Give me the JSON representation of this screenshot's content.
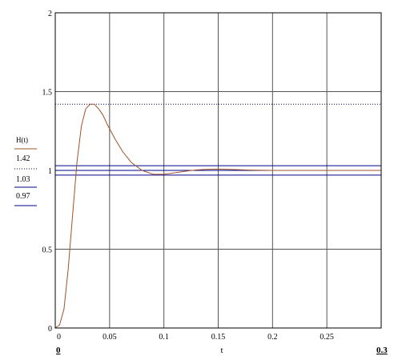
{
  "chart_data": {
    "type": "line",
    "title": "",
    "xlabel": "t",
    "ylabel": "H(t)",
    "xlim": [
      0,
      0.3
    ],
    "ylim": [
      0,
      2
    ],
    "x_ticks": [
      {
        "value": 0,
        "label": "0"
      },
      {
        "value": 0.05,
        "label": "0.05"
      },
      {
        "value": 0.1,
        "label": "0.1"
      },
      {
        "value": 0.15,
        "label": "0.15"
      },
      {
        "value": 0.2,
        "label": "0.2"
      },
      {
        "value": 0.25,
        "label": "0.25"
      }
    ],
    "y_ticks": [
      {
        "value": 0,
        "label": "0"
      },
      {
        "value": 0.5,
        "label": "0.5"
      },
      {
        "value": 1,
        "label": "1"
      },
      {
        "value": 1.5,
        "label": "1.5"
      },
      {
        "value": 2,
        "label": "2"
      }
    ],
    "x_range_labels": {
      "min": "0",
      "max": "0.3"
    },
    "grid": true,
    "legend_position": "left",
    "series": [
      {
        "name": "H(t)",
        "color": "#a0522d",
        "style": "solid",
        "x": [
          0,
          0.004,
          0.008,
          0.012,
          0.016,
          0.02,
          0.024,
          0.028,
          0.032,
          0.036,
          0.04,
          0.044,
          0.048,
          0.055,
          0.062,
          0.07,
          0.08,
          0.09,
          0.1,
          0.11,
          0.12,
          0.13,
          0.14,
          0.15,
          0.16,
          0.18,
          0.2,
          0.22,
          0.25,
          0.3
        ],
        "y": [
          0,
          0.02,
          0.12,
          0.38,
          0.72,
          1.05,
          1.28,
          1.39,
          1.42,
          1.42,
          1.39,
          1.35,
          1.29,
          1.2,
          1.12,
          1.05,
          1.0,
          0.975,
          0.975,
          0.985,
          0.995,
          1.003,
          1.007,
          1.008,
          1.006,
          1.002,
          1.0,
          1.0,
          1.0,
          1.0
        ]
      }
    ],
    "reference_lines": [
      {
        "label": "1.42",
        "value": 1.42,
        "color": "#00008b",
        "style": "dotted"
      },
      {
        "label": "1.03",
        "value": 1.03,
        "color": "#00008b",
        "style": "solid"
      },
      {
        "label": "0.97",
        "value": 0.97,
        "color": "#00008b",
        "style": "solid"
      },
      {
        "value": 1.0,
        "color": "#00008b",
        "style": "solid"
      }
    ]
  }
}
